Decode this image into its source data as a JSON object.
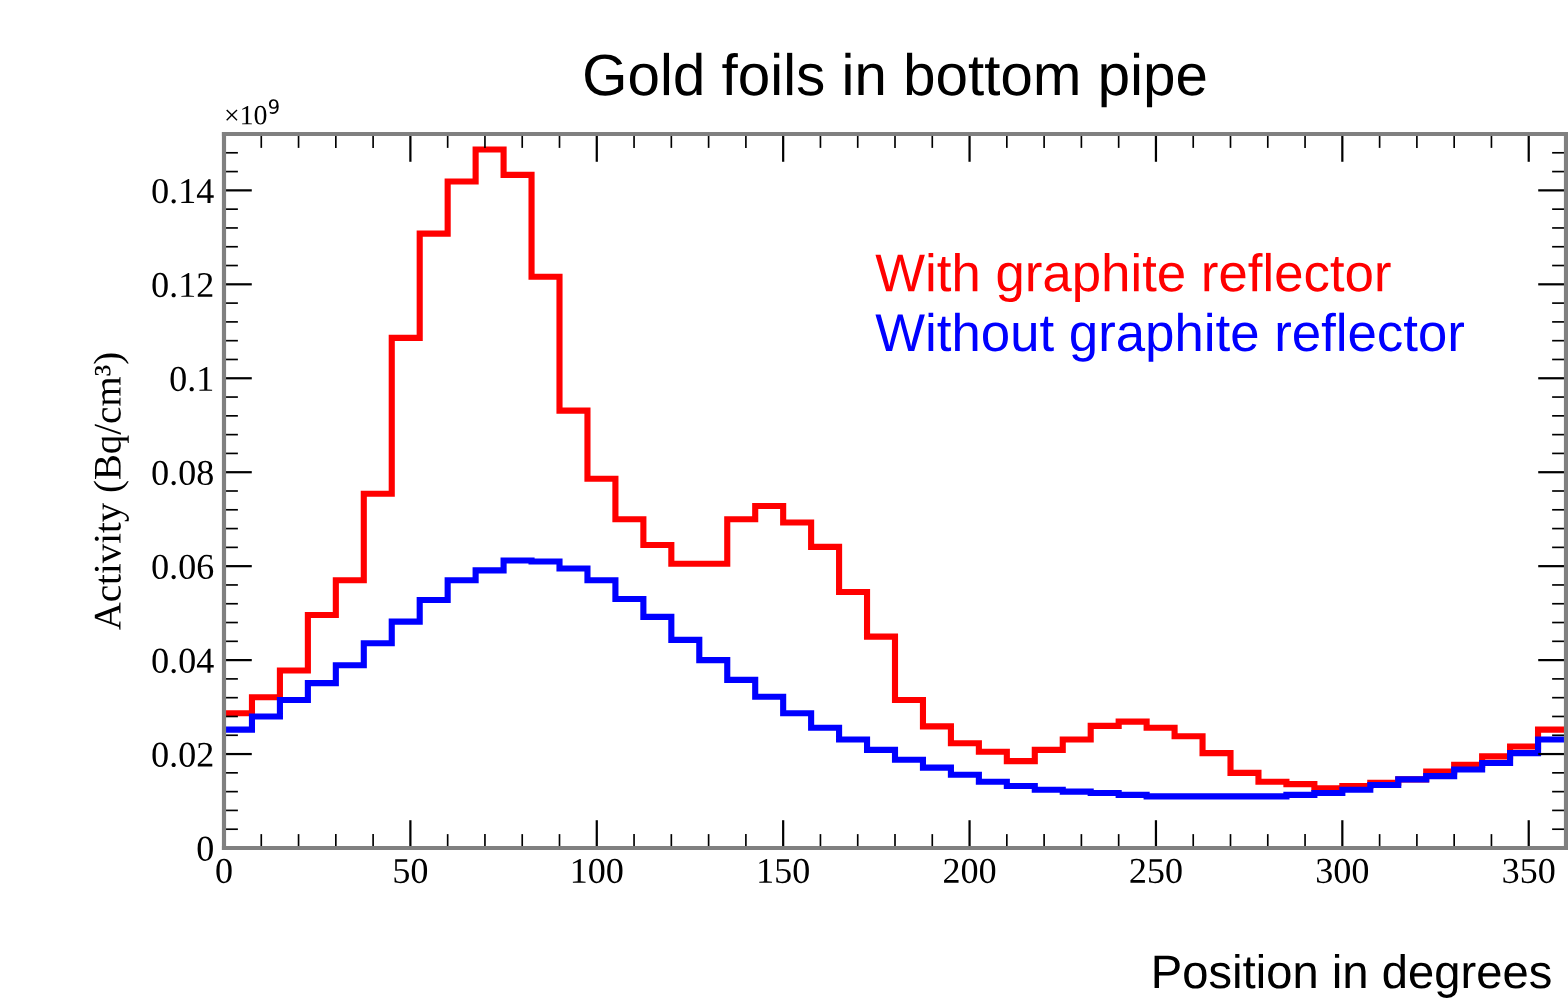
{
  "chart_data": {
    "type": "histogram",
    "title": "Gold foils in bottom pipe",
    "xlabel": "Position in degrees",
    "ylabel": "Activity (Bq/cm³)",
    "annotations": [
      "×10$^{9}$"
    ],
    "bins": [
      0,
      7.5,
      15,
      22.5,
      30,
      37.5,
      45,
      52.5,
      60,
      67.5,
      75,
      82.5,
      90,
      97.5,
      105,
      112.5,
      120,
      127.5,
      135,
      142.5,
      150,
      157.5,
      165,
      172.5,
      180,
      187.5,
      195,
      202.5,
      210,
      217.5,
      225,
      232.5,
      240,
      247.5,
      255,
      262.5,
      270,
      277.5,
      285,
      292.5,
      300,
      307.5,
      315,
      322.5,
      330,
      337.5,
      345,
      352.5,
      360
    ],
    "series": [
      {
        "name": "With graphite reflector",
        "color": "#ff0000",
        "values": [
          0.0287,
          0.0321,
          0.0378,
          0.0496,
          0.057,
          0.0754,
          0.1086,
          0.1308,
          0.1419,
          0.1487,
          0.1433,
          0.1216,
          0.0931,
          0.0786,
          0.07,
          0.0645,
          0.0605,
          0.0605,
          0.07,
          0.0728,
          0.0693,
          0.0641,
          0.0545,
          0.045,
          0.0315,
          0.0259,
          0.0223,
          0.0205,
          0.0185,
          0.0209,
          0.0231,
          0.026,
          0.0269,
          0.0256,
          0.0238,
          0.0202,
          0.016,
          0.0141,
          0.0136,
          0.0127,
          0.0132,
          0.0139,
          0.0146,
          0.0163,
          0.0177,
          0.0195,
          0.0216,
          0.0252
        ]
      },
      {
        "name": "Without graphite reflector",
        "color": "#0000ff",
        "values": [
          0.0252,
          0.028,
          0.0315,
          0.0351,
          0.0389,
          0.0436,
          0.0482,
          0.0528,
          0.057,
          0.0591,
          0.0612,
          0.061,
          0.0595,
          0.057,
          0.053,
          0.0492,
          0.0443,
          0.04,
          0.0358,
          0.0322,
          0.0287,
          0.0256,
          0.0231,
          0.0209,
          0.0188,
          0.0171,
          0.0156,
          0.0141,
          0.0132,
          0.0124,
          0.012,
          0.0117,
          0.0113,
          0.011,
          0.011,
          0.011,
          0.011,
          0.011,
          0.0113,
          0.0117,
          0.0124,
          0.0134,
          0.0146,
          0.0153,
          0.0167,
          0.0181,
          0.0202,
          0.0231
        ]
      }
    ],
    "xlim": [
      0,
      360
    ],
    "xticks": [
      0,
      50,
      100,
      150,
      200,
      250,
      300,
      350
    ],
    "ylim": [
      0,
      0.152
    ],
    "yticks": [
      0,
      0.02,
      0.04,
      0.06,
      0.08,
      0.1,
      0.12,
      0.14
    ],
    "legend": "top right",
    "grid": false
  }
}
